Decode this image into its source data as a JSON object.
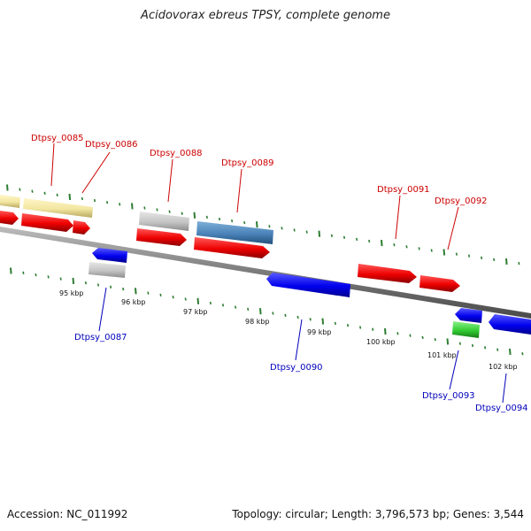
{
  "title": "Acidovorax ebreus TPSY, complete genome",
  "accession_label": "Accession: NC_011992",
  "genome_stats": "Topology: circular; Length: 3,796,573 bp; Genes: 3,544",
  "colors": {
    "forward_label": "#cc0000",
    "reverse_label": "#0000bb",
    "tick": "#2e7d32",
    "backbone": "#7a7a7a"
  },
  "kbp_labels": [
    "95 kbp",
    "96 kbp",
    "97 kbp",
    "98 kbp",
    "99 kbp",
    "100 kbp",
    "101 kbp",
    "102 kbp"
  ],
  "gene_labels": {
    "forward": [
      "Dtpsy_0085",
      "Dtpsy_0086",
      "Dtpsy_0088",
      "Dtpsy_0089",
      "Dtpsy_0091",
      "Dtpsy_0092"
    ],
    "reverse": [
      "Dtpsy_0087",
      "Dtpsy_0090",
      "Dtpsy_0093",
      "Dtpsy_0094"
    ]
  }
}
